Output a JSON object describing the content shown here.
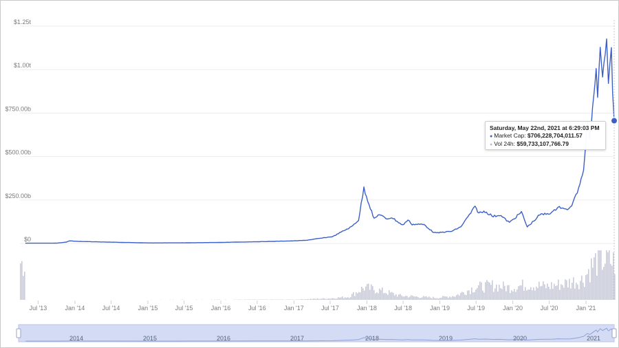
{
  "chart_data": {
    "type": "line",
    "y_axis": {
      "ticks": [
        {
          "value": 0,
          "label": "$0"
        },
        {
          "value": 250,
          "label": "$250.00b"
        },
        {
          "value": 500,
          "label": "$500.00b"
        },
        {
          "value": 750,
          "label": "$750.00b"
        },
        {
          "value": 1000,
          "label": "$1.00t"
        },
        {
          "value": 1250,
          "label": "$1.25t"
        }
      ],
      "ylim": [
        0,
        1250
      ],
      "unit": "billions USD"
    },
    "x_axis": {
      "ticks": [
        "Jul '13",
        "Jan '14",
        "Jul '14",
        "Jan '15",
        "Jul '15",
        "Jan '16",
        "Jul '16",
        "Jan '17",
        "Jul '17",
        "Jan '18",
        "Jul '18",
        "Jan '19",
        "Jul '19",
        "Jan '20",
        "Jul '20",
        "Jan '21"
      ],
      "range": [
        "2013-04",
        "2021-05"
      ]
    },
    "navigator_years": [
      "2014",
      "2015",
      "2016",
      "2017",
      "2018",
      "2019",
      "2020",
      "2021"
    ],
    "grid": true,
    "series": [
      {
        "name": "Market Cap",
        "color": "#3c5fc7",
        "x": [
          "2013-04-28",
          "2013-10-01",
          "2013-11-20",
          "2013-12-05",
          "2014-01-15",
          "2014-06-01",
          "2015-01-15",
          "2015-08-01",
          "2016-01-01",
          "2016-07-01",
          "2017-01-01",
          "2017-03-01",
          "2017-05-15",
          "2017-07-15",
          "2017-09-01",
          "2017-10-15",
          "2017-11-20",
          "2017-12-17",
          "2018-01-05",
          "2018-02-06",
          "2018-03-05",
          "2018-04-06",
          "2018-05-05",
          "2018-06-28",
          "2018-07-25",
          "2018-08-15",
          "2018-09-15",
          "2018-10-15",
          "2018-11-25",
          "2018-12-15",
          "2019-01-15",
          "2019-03-01",
          "2019-04-15",
          "2019-06-26",
          "2019-07-15",
          "2019-08-15",
          "2019-09-25",
          "2019-10-27",
          "2019-12-15",
          "2020-02-13",
          "2020-03-13",
          "2020-04-15",
          "2020-05-15",
          "2020-06-15",
          "2020-07-20",
          "2020-08-15",
          "2020-09-15",
          "2020-10-15",
          "2020-11-05",
          "2020-11-25",
          "2020-12-20",
          "2021-01-08",
          "2021-01-20",
          "2021-02-10",
          "2021-02-21",
          "2021-02-28",
          "2021-03-13",
          "2021-03-25",
          "2021-04-14",
          "2021-04-23",
          "2021-05-08",
          "2021-05-14",
          "2021-05-22"
        ],
        "values": [
          1.5,
          1.8,
          8,
          15,
          12,
          8,
          3,
          4,
          6,
          10,
          15,
          18,
          30,
          40,
          70,
          95,
          135,
          320,
          250,
          140,
          170,
          140,
          150,
          105,
          135,
          110,
          110,
          108,
          68,
          60,
          65,
          70,
          95,
          210,
          175,
          185,
          155,
          165,
          120,
          180,
          95,
          130,
          165,
          170,
          180,
          215,
          195,
          205,
          255,
          320,
          430,
          700,
          600,
          860,
          1010,
          830,
          1130,
          960,
          1170,
          930,
          1120,
          860,
          706
        ]
      }
    ],
    "volume_series": {
      "name": "Vol 24h",
      "color": "#c6cbdd",
      "x": [
        "2013-04-28",
        "2016-12-31",
        "2017-06-30",
        "2017-09-30",
        "2017-12-15",
        "2018-02-15",
        "2018-06-15",
        "2018-12-15",
        "2019-03-15",
        "2019-06-20",
        "2019-09-15",
        "2019-12-15",
        "2020-03-15",
        "2020-06-15",
        "2020-09-15",
        "2020-12-15",
        "2021-01-15",
        "2021-02-20",
        "2021-04-15",
        "2021-05-22"
      ],
      "values": [
        0,
        0.3,
        1.5,
        3,
        12,
        10,
        4,
        2,
        4,
        12,
        14,
        12,
        15,
        13,
        16,
        20,
        30,
        38,
        40,
        36
      ]
    },
    "tooltip": {
      "date": "Saturday, May 22nd, 2021 at 6:29:03 PM",
      "market_cap_label": "Market Cap:",
      "market_cap_value": "$706,228,704,011.57",
      "vol_label": "Vol 24h:",
      "vol_value": "$59,733,107,766.79"
    }
  }
}
